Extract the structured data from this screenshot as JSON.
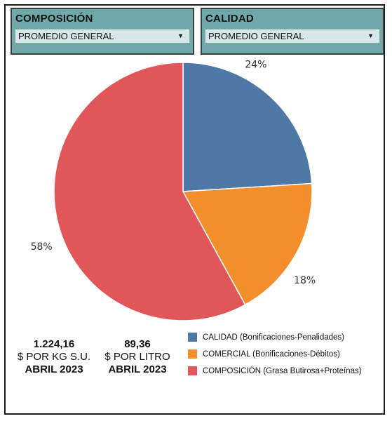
{
  "filters": [
    {
      "title": "COMPOSICIÓN",
      "selected": "PROMEDIO GENERAL"
    },
    {
      "title": "CALIDAD",
      "selected": "PROMEDIO GENERAL"
    }
  ],
  "chart_data": {
    "type": "pie",
    "slices": [
      {
        "label": "CALIDAD (Bonificaciones-Penalidades)",
        "value": 24,
        "display": "24%",
        "color": "#4e79a7"
      },
      {
        "label": "COMERCIAL (Bonificaciones-Débitos)",
        "value": 18,
        "display": "18%",
        "color": "#f28e2b"
      },
      {
        "label": "COMPOSICIÓN (Grasa Butirosa+Proteínas)",
        "value": 58,
        "display": "58%",
        "color": "#e15759"
      }
    ]
  },
  "kpis": [
    {
      "value": "1.224,16",
      "unit": "$ POR KG S.U.",
      "period": "ABRIL 2023"
    },
    {
      "value": "89,36",
      "unit": "$ POR LITRO",
      "period": "ABRIL 2023"
    }
  ],
  "legend": [
    {
      "name": "CALIDAD",
      "detail": " (Bonificaciones-Penalidades)",
      "color": "#4e79a7"
    },
    {
      "name": "COMERCIAL",
      "detail": " (Bonificaciones-Débitos)",
      "color": "#f28e2b"
    },
    {
      "name": "COMPOSICIÓN",
      "detail": " (Grasa Butirosa+Proteínas)",
      "color": "#e15759"
    }
  ]
}
